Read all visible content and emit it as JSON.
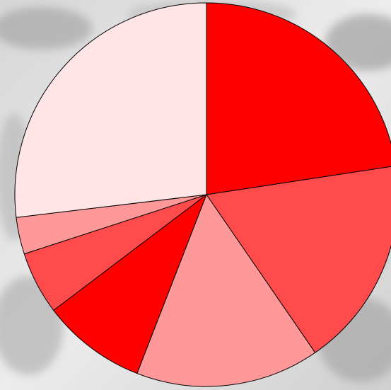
{
  "chart_data": {
    "type": "pie",
    "start_angle_deg": 0,
    "direction": "clockwise",
    "slices": [
      {
        "value": 22.6,
        "color": "#ff0000"
      },
      {
        "value": 17.8,
        "color": "#ff4b4b"
      },
      {
        "value": 15.5,
        "color": "#ff9999"
      },
      {
        "value": 8.8,
        "color": "#ff0000"
      },
      {
        "value": 5.3,
        "color": "#ff4b4b"
      },
      {
        "value": 3.1,
        "color": "#ff9999"
      },
      {
        "value": 26.9,
        "color": "#ffe5e5"
      }
    ],
    "stroke_color": "#000000",
    "title": "",
    "legend": "none"
  },
  "backdrop": {
    "description_icon": "photo-background"
  }
}
